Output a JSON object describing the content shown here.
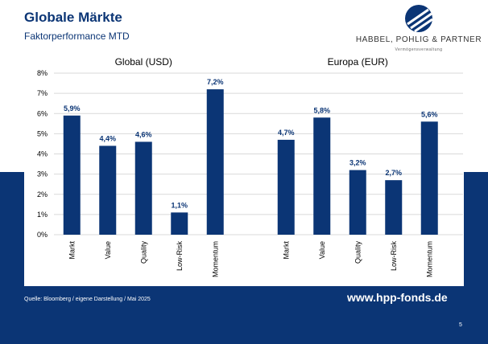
{
  "header": {
    "title": "Globale Märkte",
    "subtitle": "Faktorperformance MTD"
  },
  "logo": {
    "name": "HABBEL, POHLIG & PARTNER",
    "tagline": "Vermögensverwaltung"
  },
  "footer": {
    "source": "Quelle: Bloomberg / eigene Darstellung / Mai 2025",
    "url": "www.hpp-fonds.de",
    "page": "5"
  },
  "colors": {
    "bar": "#0b3575",
    "band": "#0b3575",
    "grid": "#d9d9d9",
    "text": "#0b3575"
  },
  "chart_data": {
    "type": "bar",
    "ylim": [
      0,
      8
    ],
    "yticks": [
      "0%",
      "1%",
      "2%",
      "3%",
      "4%",
      "5%",
      "6%",
      "7%",
      "8%"
    ],
    "grid": true,
    "groups": [
      {
        "title": "Global (USD)",
        "categories": [
          "Markt",
          "Value",
          "Quality",
          "Low-Risk",
          "Momentum"
        ],
        "values": [
          5.9,
          4.4,
          4.6,
          1.1,
          7.2
        ],
        "labels": [
          "5,9%",
          "4,4%",
          "4,6%",
          "1,1%",
          "7,2%"
        ]
      },
      {
        "title": "Europa (EUR)",
        "categories": [
          "Markt",
          "Value",
          "Quality",
          "Low-Risk",
          "Momentum"
        ],
        "values": [
          4.7,
          5.8,
          3.2,
          2.7,
          5.6
        ],
        "labels": [
          "4,7%",
          "5,8%",
          "3,2%",
          "2,7%",
          "5,6%"
        ]
      }
    ]
  }
}
